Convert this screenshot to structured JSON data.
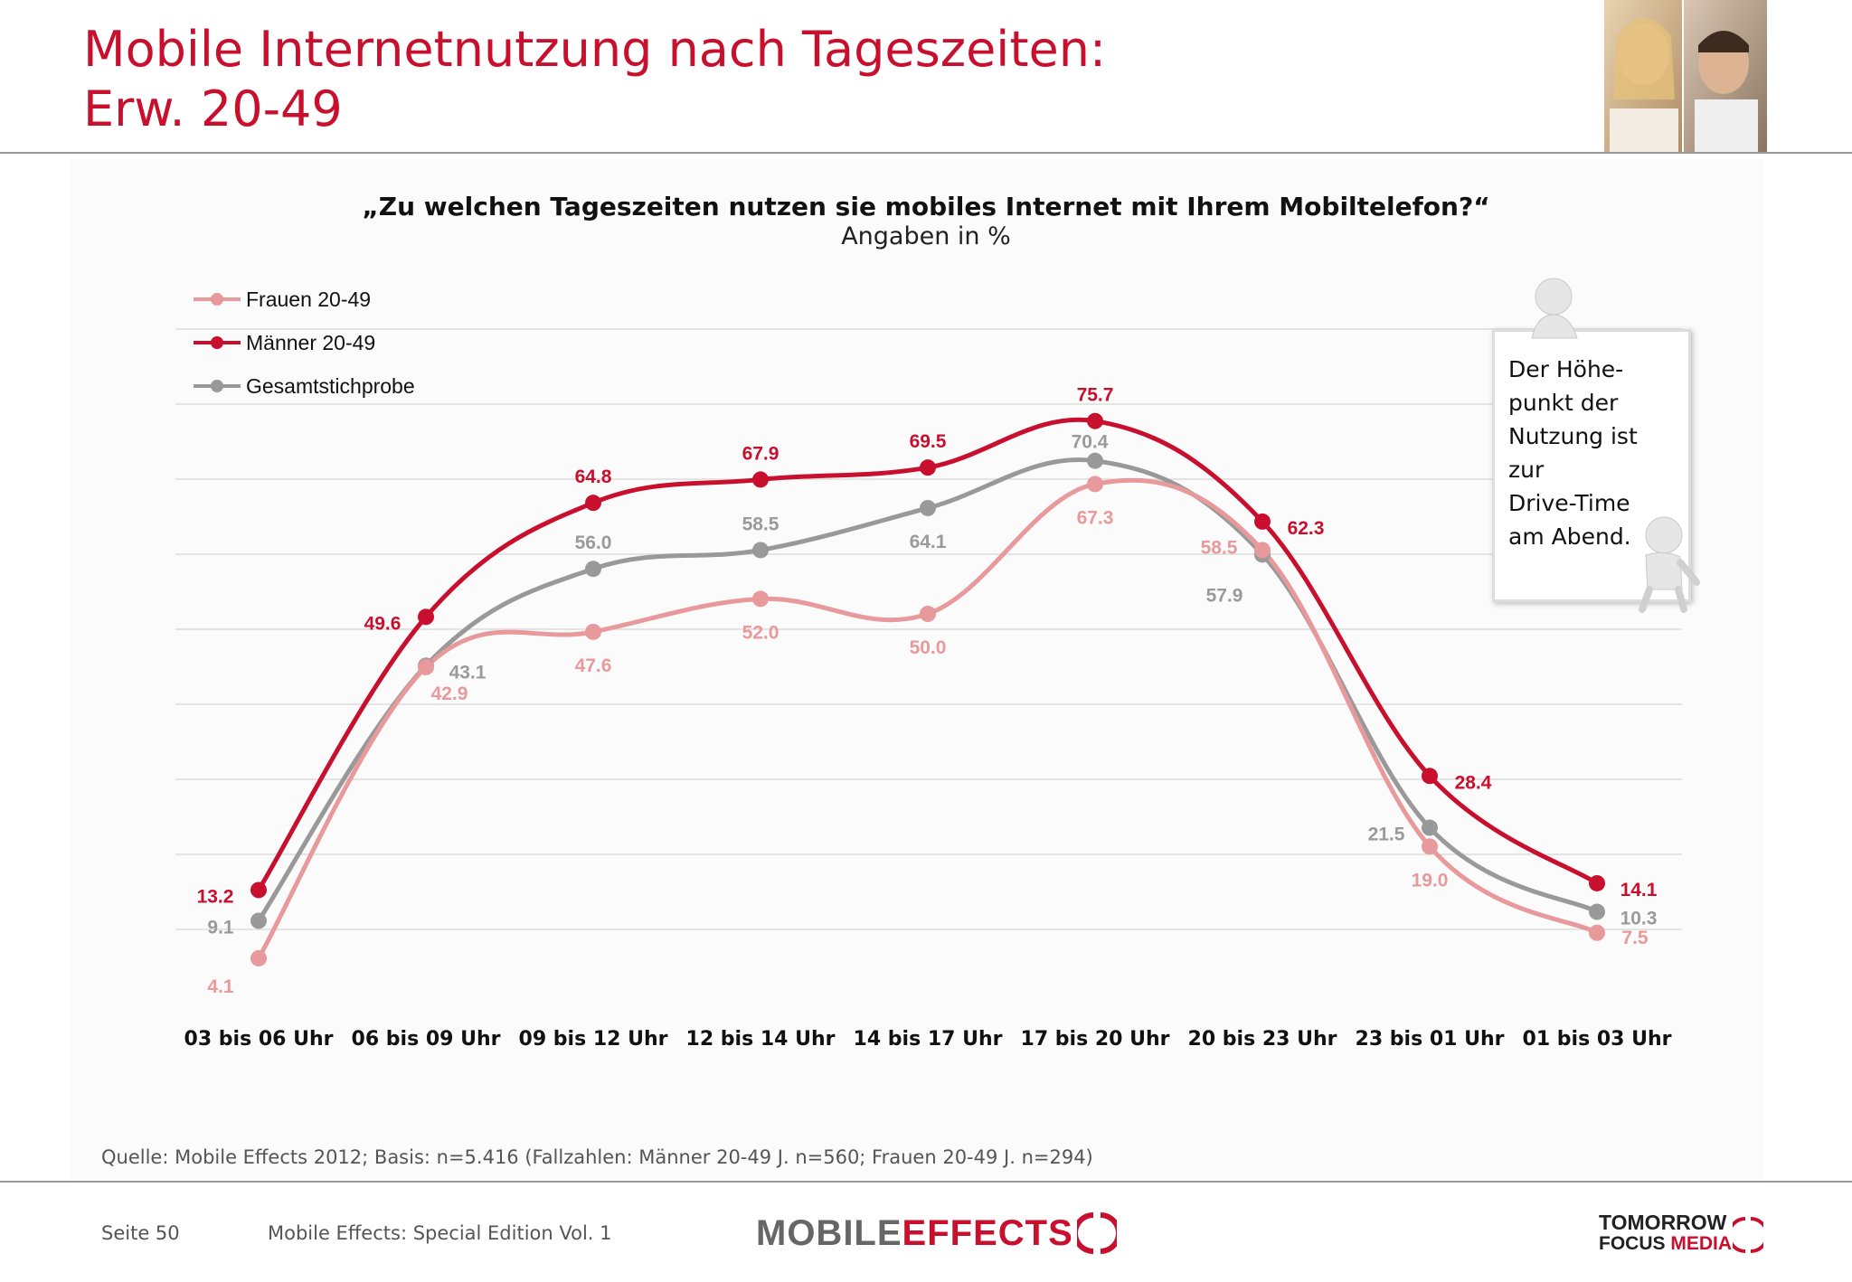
{
  "header": {
    "title_line1": "Mobile Internetnutzung nach Tageszeiten:",
    "title_line2": "Erw. 20-49"
  },
  "chart_data": {
    "type": "line",
    "title": "„Zu welchen Tageszeiten nutzen sie mobiles Internet mit Ihrem Mobiltelefon?“",
    "subtitle": "Angaben in %",
    "categories": [
      "03 bis 06 Uhr",
      "06 bis 09 Uhr",
      "09 bis 12 Uhr",
      "12 bis 14 Uhr",
      "14 bis 17 Uhr",
      "17 bis 20 Uhr",
      "20 bis 23 Uhr",
      "23 bis 01 Uhr",
      "01 bis 03 Uhr"
    ],
    "series": [
      {
        "name": "Frauen 20-49",
        "color": "#e8999b",
        "values": [
          4.1,
          42.9,
          47.6,
          52.0,
          50.0,
          67.3,
          58.5,
          19.0,
          7.5
        ]
      },
      {
        "name": "Männer 20-49",
        "color": "#c8102e",
        "values": [
          13.2,
          49.6,
          64.8,
          67.9,
          69.5,
          75.7,
          62.3,
          28.4,
          14.1
        ]
      },
      {
        "name": "Gesamtstichprobe",
        "color": "#999999",
        "values": [
          9.1,
          43.1,
          56.0,
          58.5,
          64.1,
          70.4,
          57.9,
          21.5,
          10.3
        ]
      }
    ],
    "legend_position": "top-left",
    "grid": true
  },
  "note": {
    "text": "Der Höhe-\npunkt der\nNutzung ist\nzur\nDrive-Time\nam Abend."
  },
  "footer": {
    "source": "Quelle: Mobile Effects 2012; Basis: n=5.416 (Fallzahlen: Männer 20-49 J. n=560; Frauen 20-49 J. n=294)",
    "page": "Seite 50",
    "edition": "Mobile Effects: Special Edition Vol. 1",
    "logo_left_a": "MOBILE",
    "logo_left_b": "EFFECTS",
    "logo_right_line1": "TOMORROW",
    "logo_right_line2a": "FOCUS ",
    "logo_right_line2b": "MEDIA"
  }
}
